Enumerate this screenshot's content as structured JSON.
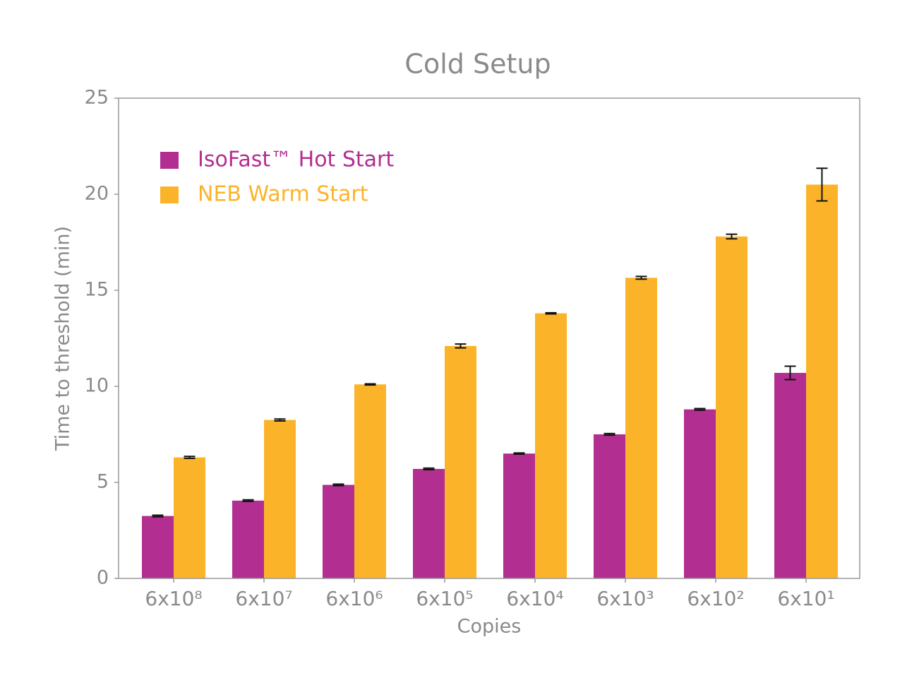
{
  "chart_data": {
    "type": "bar",
    "title": "Cold Setup",
    "x_label": "Copies",
    "y_label": "Time to threshold (min)",
    "categories": [
      "6x10⁸",
      "6x10⁷",
      "6x10⁶",
      "6x10⁵",
      "6x10⁴",
      "6x10³",
      "6x10²",
      "6x10¹"
    ],
    "series": [
      {
        "name": "IsoFast™ Hot Start",
        "color": "#b22e91",
        "values": [
          3.25,
          4.05,
          4.87,
          5.7,
          6.5,
          7.5,
          8.8,
          10.7
        ],
        "errors": [
          0.04,
          0.04,
          0.04,
          0.04,
          0.03,
          0.04,
          0.04,
          0.35
        ]
      },
      {
        "name": "NEB Warm Start",
        "color": "#fbb429",
        "values": [
          6.3,
          8.25,
          10.1,
          12.1,
          13.8,
          15.65,
          17.8,
          20.5
        ],
        "errors": [
          0.05,
          0.05,
          0.03,
          0.1,
          0.03,
          0.07,
          0.12,
          0.85
        ]
      }
    ],
    "ylim": [
      0,
      25
    ],
    "yticks": [
      0,
      5,
      10,
      15,
      20,
      25
    ],
    "legend": "upper left"
  }
}
